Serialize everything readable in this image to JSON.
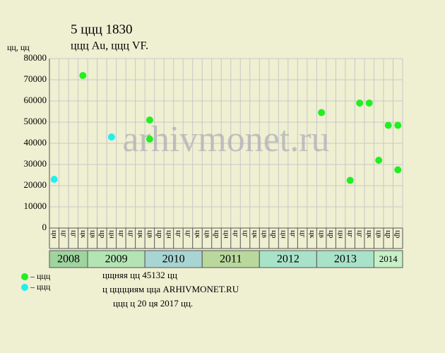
{
  "chart_data": {
    "type": "scatter",
    "title": "5 ццц 1830",
    "subtitle": "ццц Au, ццц VF.",
    "y_label": "цц, цц",
    "watermark": "arhivmonet.ru",
    "ylim": [
      0,
      80000
    ],
    "yticks": [
      0,
      10000,
      20000,
      30000,
      40000,
      50000,
      60000,
      70000,
      80000
    ],
    "grid": true,
    "years": [
      {
        "label": "2008",
        "color": "#9fd49f",
        "columns": [
          "цн",
          "цг",
          "цг",
          "цк"
        ]
      },
      {
        "label": "2009",
        "color": "#b4e4b4",
        "columns": [
          "цв",
          "цр",
          "цн",
          "цг",
          "цг",
          "цк"
        ]
      },
      {
        "label": "2010",
        "color": "#a9d4d4",
        "columns": [
          "цв",
          "цр",
          "цн",
          "цг",
          "цг",
          "цк"
        ]
      },
      {
        "label": "2011",
        "color": "#b9d89c",
        "columns": [
          "цв",
          "цр",
          "цн",
          "цг",
          "цг",
          "цк"
        ]
      },
      {
        "label": "2012",
        "color": "#a8e2c8",
        "columns": [
          "цв",
          "цр",
          "цн",
          "цг",
          "цг",
          "цк"
        ]
      },
      {
        "label": "2013",
        "color": "#a8e2c8",
        "columns": [
          "цв",
          "цр",
          "цн",
          "цг",
          "цг",
          "цк"
        ]
      },
      {
        "label": "2014",
        "color": "#c6f0c6",
        "columns": [
          "цв",
          "цр",
          "цр"
        ]
      }
    ],
    "series": [
      {
        "name": "– ццц",
        "color": "#22ee22",
        "x": [
          3,
          10,
          10,
          28,
          31,
          32,
          33,
          34,
          35,
          36,
          36
        ],
        "values": [
          72000,
          51000,
          42000,
          54500,
          22500,
          59000,
          59000,
          32000,
          48500,
          48500,
          27500
        ]
      },
      {
        "name": "– ццц",
        "color": "#22eeee",
        "x": [
          0,
          6
        ],
        "values": [
          23000,
          43000
        ]
      }
    ],
    "notes": [
      "цщняя цц 45132 цц",
      "ц цццциям цца ARHIVMONET.RU",
      "ццц ц 20 ця 2017 цц."
    ]
  }
}
